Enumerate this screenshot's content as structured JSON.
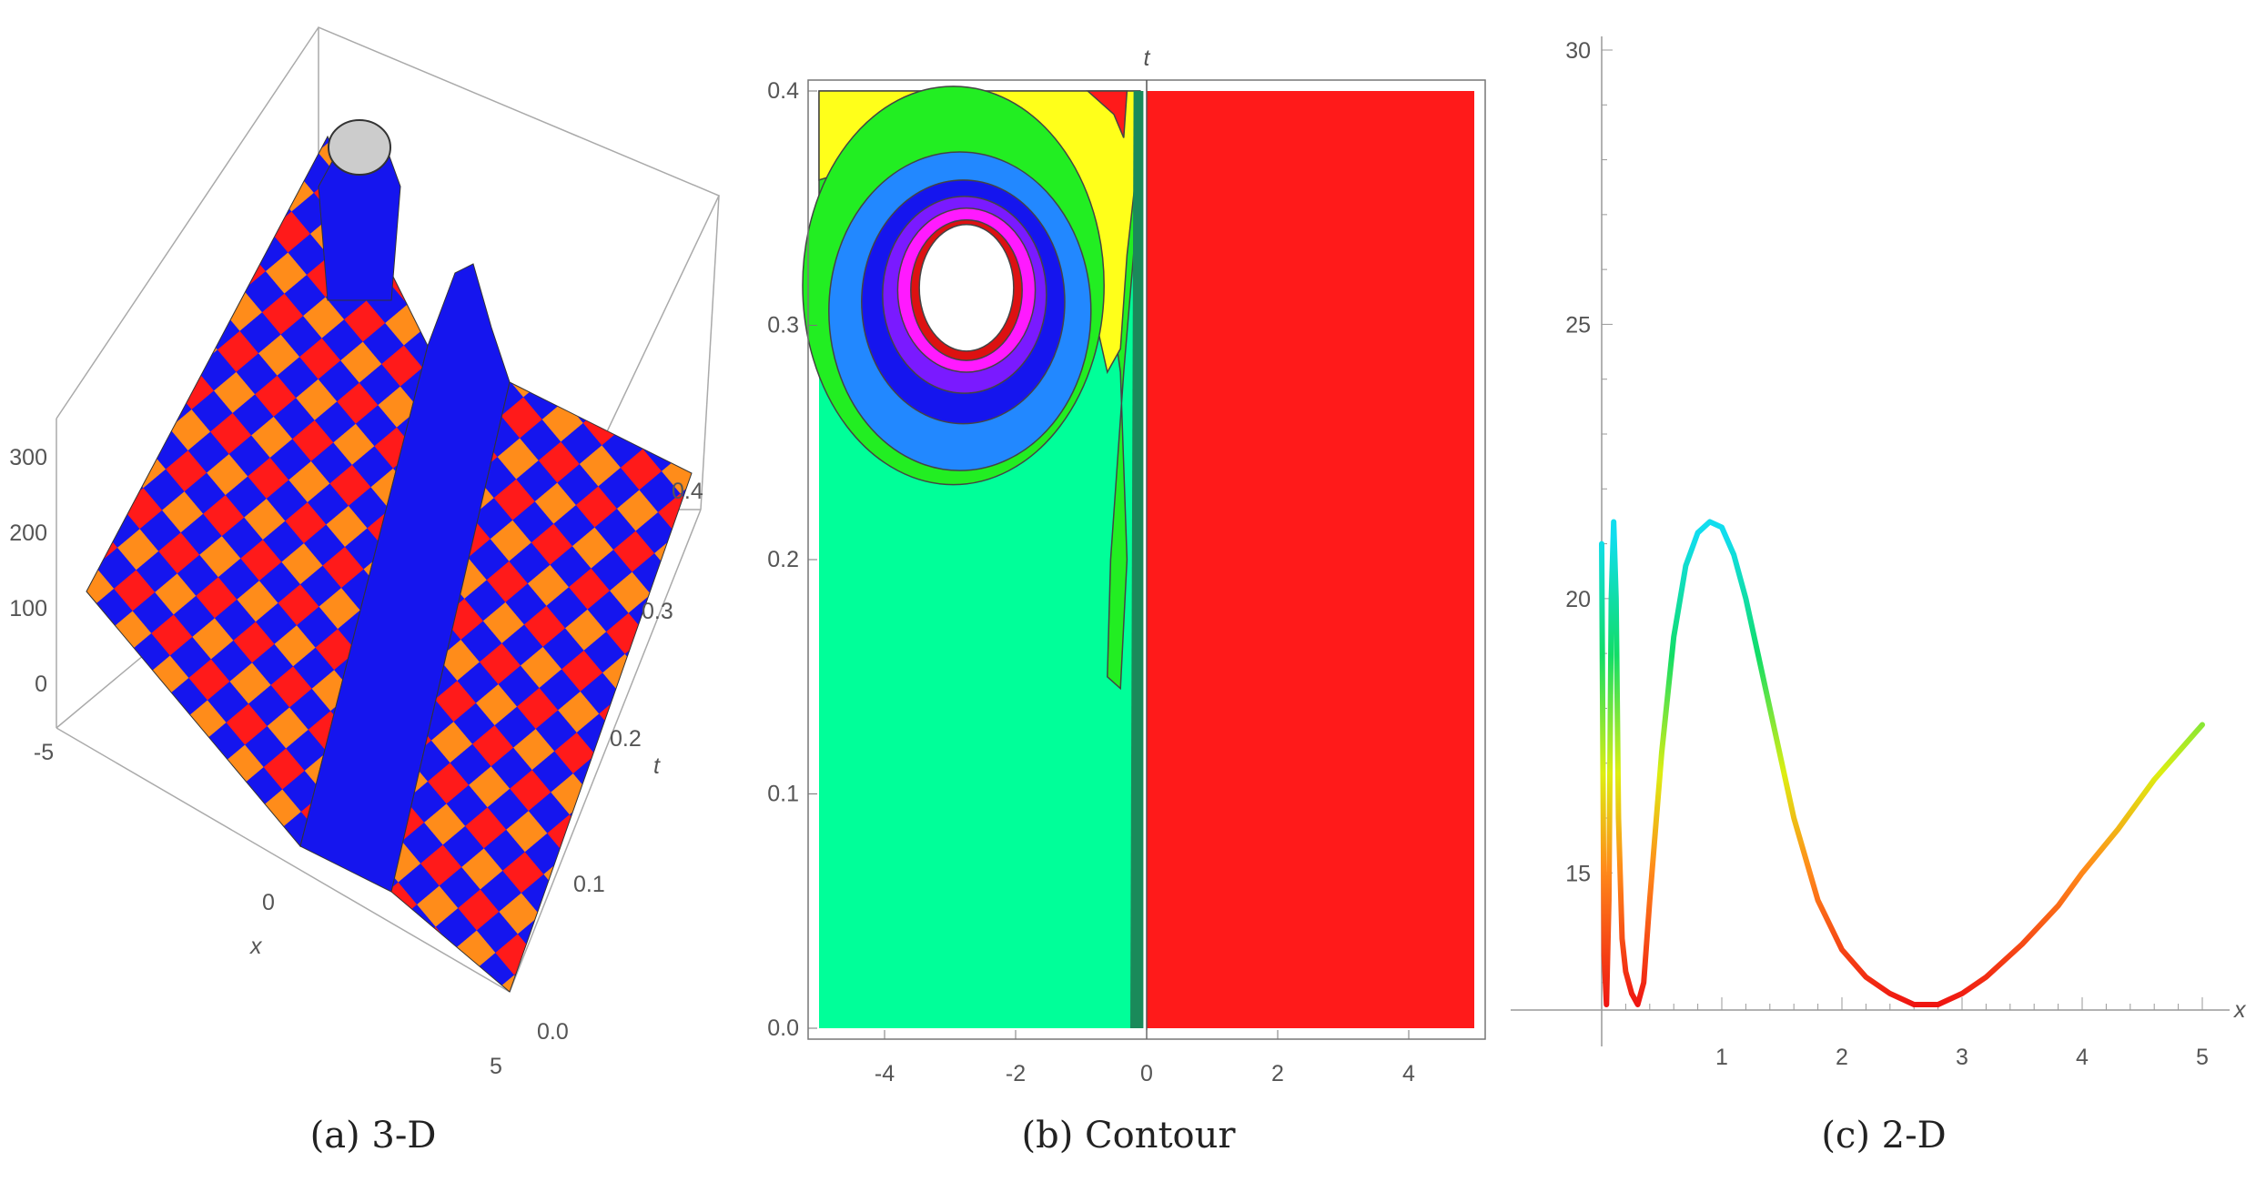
{
  "captions": {
    "a": "(a) 3-D",
    "b": "(b) Contour",
    "c": "(c) 2-D"
  },
  "colors": {
    "blue": "#1515ee",
    "red": "#ff1a1a",
    "orange": "#ff8c1a",
    "yellow": "#ffff1a",
    "green": "#22ee22",
    "aqua": "#00ff99",
    "light_blue": "#2288ff",
    "purple": "#7a1aff",
    "magenta": "#ff1aff",
    "gray": "#cccccc"
  },
  "chart_data": [
    {
      "type": "surface",
      "caption": "(a) 3-D",
      "xlabel": "x",
      "ylabel": "t",
      "x_ticks": [
        "-5",
        "0",
        "5"
      ],
      "t_ticks": [
        "0.0",
        "0.1",
        "0.2",
        "0.3",
        "0.4"
      ],
      "z_ticks": [
        "0",
        "100",
        "200",
        "300"
      ],
      "xlim": [
        -5,
        5
      ],
      "tlim": [
        0,
        0.4
      ],
      "zlim": [
        0,
        330
      ]
    },
    {
      "type": "contour",
      "caption": "(b) Contour",
      "xlabel": "",
      "ylabel": "t",
      "x_ticks": [
        "-4",
        "-2",
        "0",
        "2",
        "4"
      ],
      "y_ticks": [
        "0.0",
        "0.1",
        "0.2",
        "0.3",
        "0.4"
      ],
      "xlim": [
        -5,
        5
      ],
      "ylim": [
        0,
        0.4
      ],
      "grid": false
    },
    {
      "type": "line",
      "caption": "(c) 2-D",
      "xlabel": "x",
      "ylabel": "",
      "x_ticks": [
        "1",
        "2",
        "3",
        "4",
        "5"
      ],
      "y_ticks": [
        "15",
        "20",
        "25",
        "30"
      ],
      "xlim": [
        0,
        5
      ],
      "ylim": [
        12.5,
        30
      ],
      "x": [
        0.0,
        0.02,
        0.04,
        0.06,
        0.08,
        0.1,
        0.12,
        0.14,
        0.17,
        0.2,
        0.25,
        0.3,
        0.35,
        0.4,
        0.5,
        0.6,
        0.7,
        0.8,
        0.9,
        1.0,
        1.1,
        1.2,
        1.3,
        1.4,
        1.5,
        1.6,
        1.8,
        2.0,
        2.2,
        2.4,
        2.6,
        2.7,
        2.8,
        3.0,
        3.2,
        3.5,
        3.8,
        4.0,
        4.3,
        4.6,
        4.8,
        5.0
      ],
      "values": [
        21.0,
        13.5,
        12.6,
        14.5,
        20.0,
        21.4,
        20.0,
        16.0,
        13.8,
        13.2,
        12.8,
        12.6,
        13.0,
        14.5,
        17.2,
        19.3,
        20.6,
        21.2,
        21.4,
        21.3,
        20.8,
        20.0,
        19.0,
        18.0,
        17.0,
        16.0,
        14.5,
        13.6,
        13.1,
        12.8,
        12.6,
        12.6,
        12.6,
        12.8,
        13.1,
        13.7,
        14.4,
        15.0,
        15.8,
        16.7,
        17.2,
        17.7
      ]
    }
  ]
}
